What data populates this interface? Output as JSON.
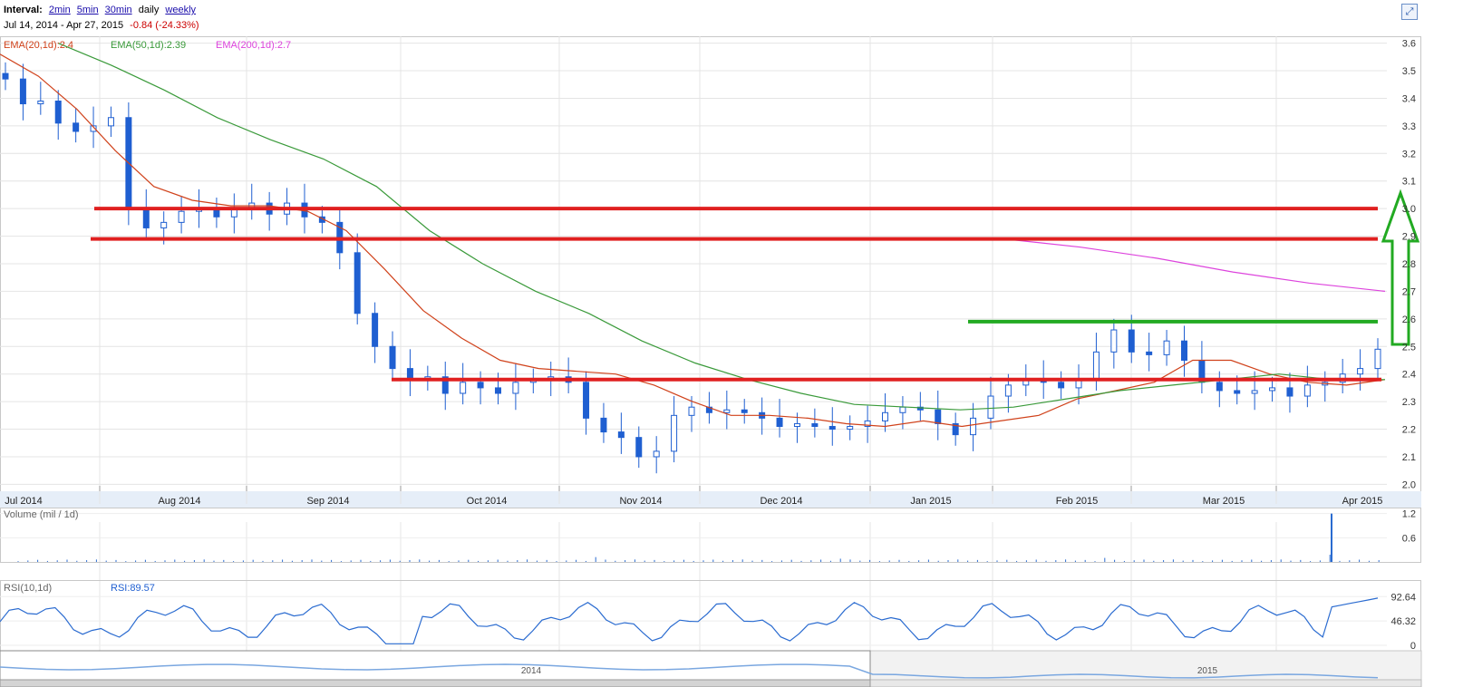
{
  "header": {
    "interval_label": "Interval:",
    "intervals": [
      "2min",
      "5min",
      "30min"
    ],
    "daily_label": "daily",
    "weekly_label": "weekly",
    "date_range": "Jul 14, 2014 - Apr 27, 2015",
    "change": "-0.84 (-24.33%)"
  },
  "indicators": {
    "ema20": {
      "label": "EMA(20,1d):2.4",
      "color": "#d0421b"
    },
    "ema50": {
      "label": "EMA(50,1d):2.39",
      "color": "#3a9a3a"
    },
    "ema200": {
      "label": "EMA(200,1d):2.7",
      "color": "#dd44dd"
    }
  },
  "volume_panel": {
    "label": "Volume (mil / 1d)",
    "ticks": [
      "1.2",
      "0.6"
    ]
  },
  "rsi_panel": {
    "label": "RSI(10,1d)",
    "value_label": "RSI:89.57",
    "ticks": [
      "92.64",
      "46.32",
      "0"
    ]
  },
  "navigator": {
    "labels": [
      "2014",
      "2015"
    ]
  },
  "colors": {
    "candle": "#1f5fd1",
    "support": "#e02020",
    "resistance": "#22aa22",
    "arrow": "#22aa22",
    "line": "#2a6bd0"
  },
  "chart_data": {
    "type": "line",
    "title": "",
    "xlabel": "",
    "ylabel": "",
    "ylim": [
      1.975,
      3.625
    ],
    "y_ticks": [
      3.6,
      3.5,
      3.4,
      3.3,
      3.2,
      3.1,
      3.0,
      2.9,
      2.8,
      2.7,
      2.6,
      2.5,
      2.4,
      2.3,
      2.2,
      2.1,
      2.0
    ],
    "x_ticks": [
      "Jul 2014",
      "Aug 2014",
      "Sep 2014",
      "Oct 2014",
      "Nov 2014",
      "Dec 2014",
      "Jan 2015",
      "Feb 2015",
      "Mar 2015",
      "Apr 2015"
    ],
    "price_close": [
      3.47,
      3.38,
      3.39,
      3.31,
      3.28,
      3.3,
      3.33,
      3.0,
      2.93,
      2.95,
      2.99,
      3.0,
      2.97,
      3.0,
      3.02,
      2.98,
      3.02,
      2.97,
      2.95,
      2.84,
      2.62,
      2.5,
      2.42,
      2.38,
      2.39,
      2.33,
      2.37,
      2.35,
      2.33,
      2.37,
      2.38,
      2.39,
      2.37,
      2.24,
      2.19,
      2.17,
      2.1,
      2.12,
      2.25,
      2.28,
      2.26,
      2.27,
      2.26,
      2.24,
      2.21,
      2.22,
      2.21,
      2.2,
      2.21,
      2.23,
      2.26,
      2.28,
      2.27,
      2.22,
      2.18,
      2.24,
      2.32,
      2.36,
      2.38,
      2.37,
      2.35,
      2.38,
      2.48,
      2.56,
      2.48,
      2.47,
      2.52,
      2.45,
      2.37,
      2.34,
      2.33,
      2.34,
      2.35,
      2.32,
      2.36,
      2.37,
      2.4,
      2.42,
      2.49
    ],
    "series": [
      {
        "name": "EMA(20,1d)",
        "values": [
          3.56,
          3.48,
          3.36,
          3.21,
          3.08,
          3.03,
          3.01,
          3.01,
          2.99,
          2.92,
          2.78,
          2.63,
          2.53,
          2.45,
          2.42,
          2.41,
          2.4,
          2.36,
          2.3,
          2.25,
          2.25,
          2.24,
          2.22,
          2.21,
          2.23,
          2.21,
          2.23,
          2.25,
          2.31,
          2.34,
          2.37,
          2.45,
          2.45,
          2.4,
          2.37,
          2.36,
          2.38
        ]
      },
      {
        "name": "EMA(50,1d)",
        "values": [
          3.6,
          3.52,
          3.43,
          3.33,
          3.25,
          3.18,
          3.08,
          2.92,
          2.8,
          2.7,
          2.62,
          2.52,
          2.44,
          2.38,
          2.33,
          2.29,
          2.28,
          2.27,
          2.28,
          2.31,
          2.34,
          2.36,
          2.38,
          2.4,
          2.38,
          2.38
        ]
      },
      {
        "name": "EMA(200,1d)",
        "values": [
          2.89,
          2.86,
          2.82,
          2.77,
          2.73,
          2.7
        ]
      }
    ],
    "annotations": {
      "support_lines": [
        3.0,
        2.89,
        2.38
      ],
      "resistance_line": 2.59,
      "arrow": "up"
    },
    "volume": {
      "ylim": [
        0,
        1.35
      ],
      "max_bar": 1.2
    },
    "rsi": {
      "ylim": [
        0,
        100
      ],
      "last": 89.57
    }
  }
}
